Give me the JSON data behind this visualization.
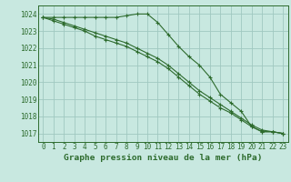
{
  "line1": {
    "x": [
      0,
      1,
      2,
      3,
      4,
      5,
      6,
      7,
      8,
      9,
      10,
      11,
      12,
      13,
      14,
      15,
      16,
      17,
      18,
      19,
      20,
      21,
      22,
      23
    ],
    "y": [
      1023.8,
      1023.8,
      1023.8,
      1023.8,
      1023.8,
      1023.8,
      1023.8,
      1023.8,
      1023.9,
      1024.0,
      1024.0,
      1023.5,
      1022.8,
      1022.1,
      1021.5,
      1021.0,
      1020.3,
      1019.3,
      1018.8,
      1018.3,
      1017.4,
      1017.1,
      1017.1,
      1017.0
    ],
    "color": "#2d6b2d",
    "marker": "+"
  },
  "line2": {
    "x": [
      0,
      1,
      2,
      3,
      4,
      5,
      6,
      7,
      8,
      9,
      10,
      11,
      12,
      13,
      14,
      15,
      16,
      17,
      18,
      19,
      20,
      21,
      22,
      23
    ],
    "y": [
      1023.8,
      1023.6,
      1023.4,
      1023.2,
      1023.0,
      1022.7,
      1022.5,
      1022.3,
      1022.1,
      1021.8,
      1021.5,
      1021.2,
      1020.8,
      1020.3,
      1019.8,
      1019.3,
      1018.9,
      1018.5,
      1018.2,
      1017.8,
      1017.4,
      1017.1,
      1017.1,
      1017.0
    ],
    "color": "#2d6b2d",
    "marker": "+"
  },
  "line3": {
    "x": [
      0,
      1,
      2,
      3,
      4,
      5,
      6,
      7,
      8,
      9,
      10,
      11,
      12,
      13,
      14,
      15,
      16,
      17,
      18,
      19,
      20,
      21,
      22,
      23
    ],
    "y": [
      1023.8,
      1023.7,
      1023.5,
      1023.3,
      1023.1,
      1022.9,
      1022.7,
      1022.5,
      1022.3,
      1022.0,
      1021.7,
      1021.4,
      1021.0,
      1020.5,
      1020.0,
      1019.5,
      1019.1,
      1018.7,
      1018.3,
      1017.9,
      1017.5,
      1017.2,
      1017.1,
      1017.0
    ],
    "color": "#2d6b2d",
    "marker": "+"
  },
  "background_color": "#c8e8e0",
  "grid_color": "#a0c8c0",
  "line_color": "#2d6b2d",
  "title": "Graphe pression niveau de la mer (hPa)",
  "xlim_min": -0.5,
  "xlim_max": 23.5,
  "ylim_min": 1016.5,
  "ylim_max": 1024.5,
  "yticks": [
    1017,
    1018,
    1019,
    1020,
    1021,
    1022,
    1023,
    1024
  ],
  "xticks": [
    0,
    1,
    2,
    3,
    4,
    5,
    6,
    7,
    8,
    9,
    10,
    11,
    12,
    13,
    14,
    15,
    16,
    17,
    18,
    19,
    20,
    21,
    22,
    23
  ],
  "tick_fontsize": 5.5,
  "title_fontsize": 6.8
}
